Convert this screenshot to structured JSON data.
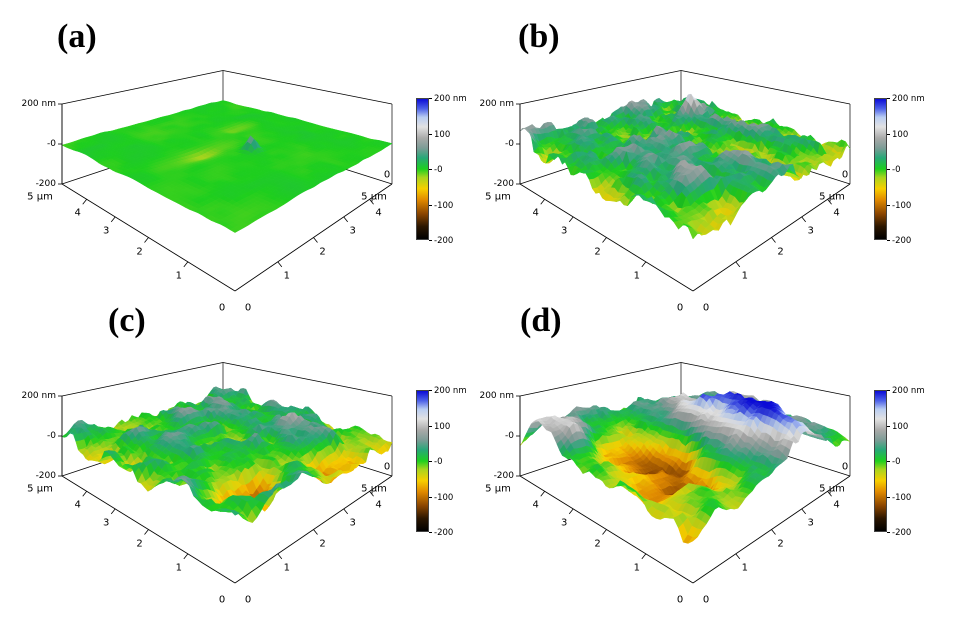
{
  "figure": {
    "background_color": "#ffffff",
    "panels": [
      {
        "id": "a",
        "label": "(a)",
        "z_axis_ticks": [
          "200 nm",
          "-0",
          "-200"
        ],
        "left_axis": {
          "origin_label": "0",
          "tick_labels": [
            "1",
            "2",
            "3",
            "4"
          ],
          "max_label": "5 µm"
        },
        "right_axis": {
          "origin_label": "0",
          "tick_labels": [
            "1",
            "2",
            "3",
            "4"
          ],
          "max_label": "5 µm",
          "corner_zero_label": "0"
        },
        "surface": {
          "seed": 7,
          "base_nm": 0,
          "octaves": [
            {
              "f": 6,
              "A": 5
            },
            {
              "f": 20,
              "A": 3
            }
          ],
          "features": [
            {
              "u": 0.52,
              "v": 0.38,
              "wu": 0.03,
              "wv": 0.03,
              "A": 70
            },
            {
              "u": 0.35,
              "v": 0.5,
              "wu": 0.12,
              "wv": 0.04,
              "A": -20
            },
            {
              "u": 0.7,
              "v": 0.62,
              "wu": 0.12,
              "wv": 0.05,
              "A": -16
            }
          ]
        }
      },
      {
        "id": "b",
        "label": "(b)",
        "z_axis_ticks": [
          "200 nm",
          "-0",
          "-200"
        ],
        "left_axis": {
          "origin_label": "0",
          "tick_labels": [
            "1",
            "2",
            "3",
            "4"
          ],
          "max_label": "5 µm"
        },
        "right_axis": {
          "origin_label": "0",
          "tick_labels": [
            "1",
            "2",
            "3",
            "4"
          ],
          "max_label": "5 µm",
          "corner_zero_label": "0"
        },
        "surface": {
          "seed": 23,
          "base_nm": 8,
          "octaves": [
            {
              "f": 5,
              "A": 38
            },
            {
              "f": 13,
              "A": 42
            },
            {
              "f": 34,
              "A": 26
            }
          ],
          "features": [
            {
              "u": 0.78,
              "v": 0.72,
              "wu": 0.05,
              "wv": 0.05,
              "A": 135
            }
          ]
        }
      },
      {
        "id": "c",
        "label": "(c)",
        "z_axis_ticks": [
          "200 nm",
          "-0",
          "-200"
        ],
        "left_axis": {
          "origin_label": "0",
          "tick_labels": [
            "1",
            "2",
            "3",
            "4"
          ],
          "max_label": "5 µm"
        },
        "right_axis": {
          "origin_label": "0",
          "tick_labels": [
            "1",
            "2",
            "3",
            "4"
          ],
          "max_label": "5 µm",
          "corner_zero_label": "0"
        },
        "surface": {
          "seed": 59,
          "base_nm": 12,
          "octaves": [
            {
              "f": 4,
              "A": 50
            },
            {
              "f": 12,
              "A": 46
            },
            {
              "f": 30,
              "A": 24
            }
          ],
          "features": [
            {
              "u": 0.25,
              "v": 0.15,
              "wu": 0.14,
              "wv": 0.12,
              "A": -85
            },
            {
              "u": 0.62,
              "v": 0.06,
              "wu": 0.12,
              "wv": 0.1,
              "A": -65
            },
            {
              "u": 0.5,
              "v": 0.55,
              "wu": 0.3,
              "wv": 0.3,
              "A": 22
            }
          ]
        }
      },
      {
        "id": "d",
        "label": "(d)",
        "z_axis_ticks": [
          "200 nm",
          "-0",
          "-200"
        ],
        "left_axis": {
          "origin_label": "0",
          "tick_labels": [
            "1",
            "2",
            "3",
            "4"
          ],
          "max_label": "5 µm"
        },
        "right_axis": {
          "origin_label": "0",
          "tick_labels": [
            "1",
            "2",
            "3",
            "4"
          ],
          "max_label": "5 µm",
          "corner_zero_label": "0"
        },
        "surface": {
          "seed": 101,
          "base_nm": 0,
          "octaves": [
            {
              "f": 3,
              "A": 60
            },
            {
              "f": 10,
              "A": 45
            },
            {
              "f": 28,
              "A": 22
            }
          ],
          "features": [
            {
              "u": 0.63,
              "v": 0.3,
              "wu": 0.17,
              "wv": 0.5,
              "A": 180
            },
            {
              "u": 0.05,
              "v": 0.8,
              "wu": 0.16,
              "wv": 0.14,
              "A": 165
            },
            {
              "u": 0.3,
              "v": 0.4,
              "wu": 0.2,
              "wv": 0.28,
              "A": -140
            },
            {
              "u": 0.85,
              "v": 0.75,
              "wu": 0.18,
              "wv": 0.2,
              "A": 55
            }
          ]
        }
      }
    ],
    "colorbar": {
      "tick_labels": [
        "200 nm",
        "100",
        "-0",
        "-100",
        "-200"
      ],
      "palette": [
        {
          "t": 0.0,
          "c": "#000000"
        },
        {
          "t": 0.09,
          "c": "#2b1600"
        },
        {
          "t": 0.18,
          "c": "#8a4500"
        },
        {
          "t": 0.28,
          "c": "#e08a00"
        },
        {
          "t": 0.36,
          "c": "#f7cf00"
        },
        {
          "t": 0.44,
          "c": "#a8d51e"
        },
        {
          "t": 0.5,
          "c": "#1ecf1e"
        },
        {
          "t": 0.58,
          "c": "#28a878"
        },
        {
          "t": 0.65,
          "c": "#7d9c96"
        },
        {
          "t": 0.72,
          "c": "#a9aaa9"
        },
        {
          "t": 0.8,
          "c": "#e2e2e2"
        },
        {
          "t": 0.87,
          "c": "#b9cdf2"
        },
        {
          "t": 0.93,
          "c": "#4e62e8"
        },
        {
          "t": 1.0,
          "c": "#0b0bd6"
        }
      ]
    }
  },
  "chart_data": [
    {
      "type": "surface",
      "panel": "a",
      "title": "(a)",
      "x_axis": {
        "range_um": [
          0,
          5
        ],
        "ticks": [
          0,
          1,
          2,
          3,
          4
        ],
        "max_label": "5 µm"
      },
      "y_axis": {
        "range_um": [
          0,
          5
        ],
        "ticks": [
          0,
          1,
          2,
          3,
          4
        ],
        "max_label": "5 µm"
      },
      "z_axis": {
        "range_nm": [
          -200,
          200
        ],
        "ticks_nm": [
          200,
          0,
          -200
        ]
      },
      "colorbar_ticks_nm": [
        200,
        100,
        0,
        -100,
        -200
      ],
      "surface_character": "very smooth flat film; height ~0 nm everywhere (uniform bright green) with one small bump near centre and faint shallow streaks",
      "approx_peak_to_valley_nm": 20
    },
    {
      "type": "surface",
      "panel": "b",
      "title": "(b)",
      "x_axis": {
        "range_um": [
          0,
          5
        ],
        "ticks": [
          0,
          1,
          2,
          3,
          4
        ],
        "max_label": "5 µm"
      },
      "y_axis": {
        "range_um": [
          0,
          5
        ],
        "ticks": [
          0,
          1,
          2,
          3,
          4
        ],
        "max_label": "5 µm"
      },
      "z_axis": {
        "range_nm": [
          -200,
          200
        ],
        "ticks_nm": [
          200,
          0,
          -200
        ]
      },
      "colorbar_ticks_nm": [
        200,
        100,
        0,
        -100,
        -200
      ],
      "surface_character": "uniformly rough granular film; dense sharp peaks roughly -80 to +120 nm (green/teal with grey tips), one tall peak near the back reaching ~+200 nm (blue)",
      "approx_peak_to_valley_nm": 280
    },
    {
      "type": "surface",
      "panel": "c",
      "title": "(c)",
      "x_axis": {
        "range_um": [
          0,
          5
        ],
        "ticks": [
          0,
          1,
          2,
          3,
          4
        ],
        "max_label": "5 µm"
      },
      "y_axis": {
        "range_um": [
          0,
          5
        ],
        "ticks": [
          0,
          1,
          2,
          3,
          4
        ],
        "max_label": "5 µm"
      },
      "z_axis": {
        "range_nm": [
          -200,
          200
        ],
        "ticks_nm": [
          200,
          0,
          -200
        ]
      },
      "colorbar_ticks_nm": [
        200,
        100,
        0,
        -100,
        -200
      ],
      "surface_character": "coarser rough film; broad grains with grey/white tops up to ~+150 nm and yellow/orange pits to ~-120 nm near the front edges",
      "approx_peak_to_valley_nm": 300
    },
    {
      "type": "surface",
      "panel": "d",
      "title": "(d)",
      "x_axis": {
        "range_um": [
          0,
          5
        ],
        "ticks": [
          0,
          1,
          2,
          3,
          4
        ],
        "max_label": "5 µm"
      },
      "y_axis": {
        "range_um": [
          0,
          5
        ],
        "ticks": [
          0,
          1,
          2,
          3,
          4
        ],
        "max_label": "5 µm"
      },
      "z_axis": {
        "range_nm": [
          -200,
          200
        ],
        "ticks_nm": [
          200,
          0,
          -200
        ]
      },
      "colorbar_ticks_nm": [
        200,
        100,
        0,
        -100,
        -200
      ],
      "surface_character": "very rough surface; large elongated ridge rising to +200 nm (white/blue) sweeping across the right half, second blue mound at the left, deep trenches to -200 nm (orange/brown/black) in the centre",
      "approx_peak_to_valley_nm": 400
    }
  ]
}
